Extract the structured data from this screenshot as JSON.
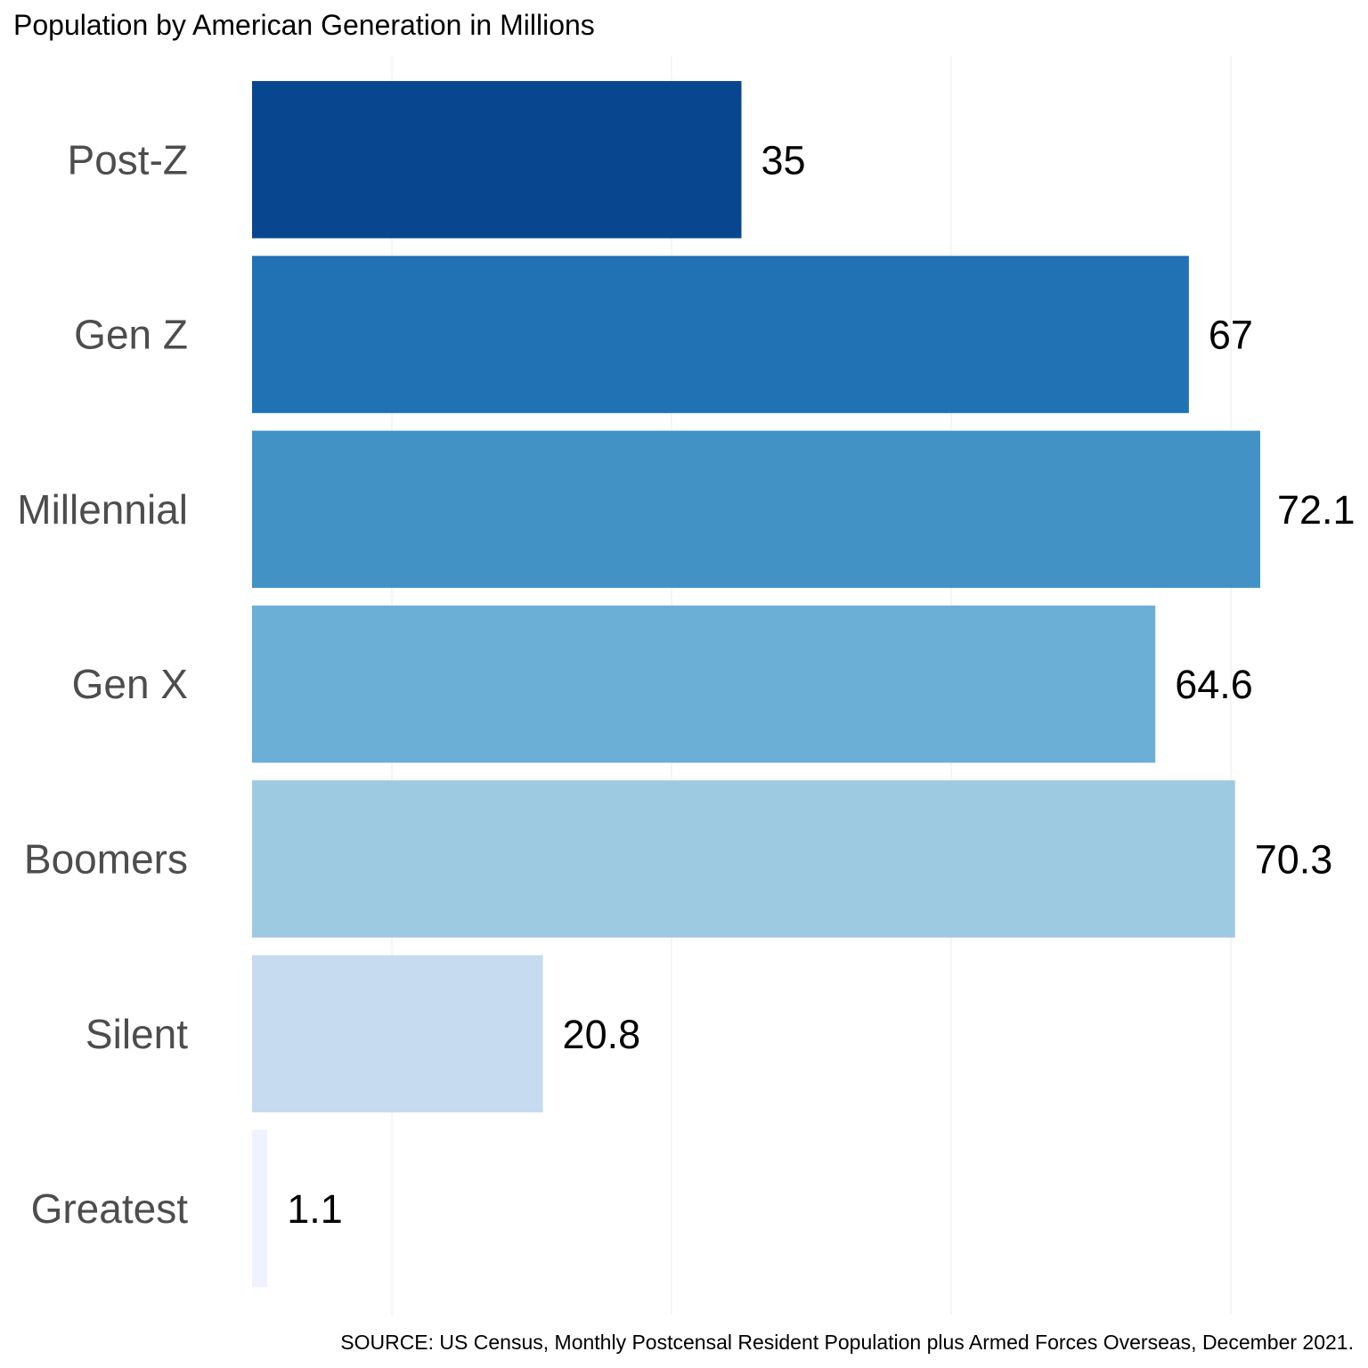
{
  "chart_data": {
    "type": "bar",
    "orientation": "horizontal",
    "title": "Population by American Generation in Millions",
    "source": "SOURCE: US Census, Monthly Postcensal Resident Population plus Armed Forces Overseas, December 2021.",
    "categories": [
      "Post-Z",
      "Gen Z",
      "Millennial",
      "Gen X",
      "Boomers",
      "Silent",
      "Greatest"
    ],
    "values": [
      35,
      67,
      72.1,
      64.6,
      70.3,
      20.8,
      1.1
    ],
    "value_labels": [
      "35",
      "67",
      "72.1",
      "64.6",
      "70.3",
      "20.8",
      "1.1"
    ],
    "colors": [
      "#08468f",
      "#2171b5",
      "#4292c6",
      "#6baed6",
      "#9ecae1",
      "#c6dbef",
      "#eff3ff"
    ],
    "xlabel": "",
    "ylabel": "",
    "xlim": [
      0,
      75
    ],
    "x_gridlines": [
      10,
      30,
      50,
      70
    ],
    "x_tick_labels_shown": false,
    "grid": true,
    "legend": "none"
  }
}
